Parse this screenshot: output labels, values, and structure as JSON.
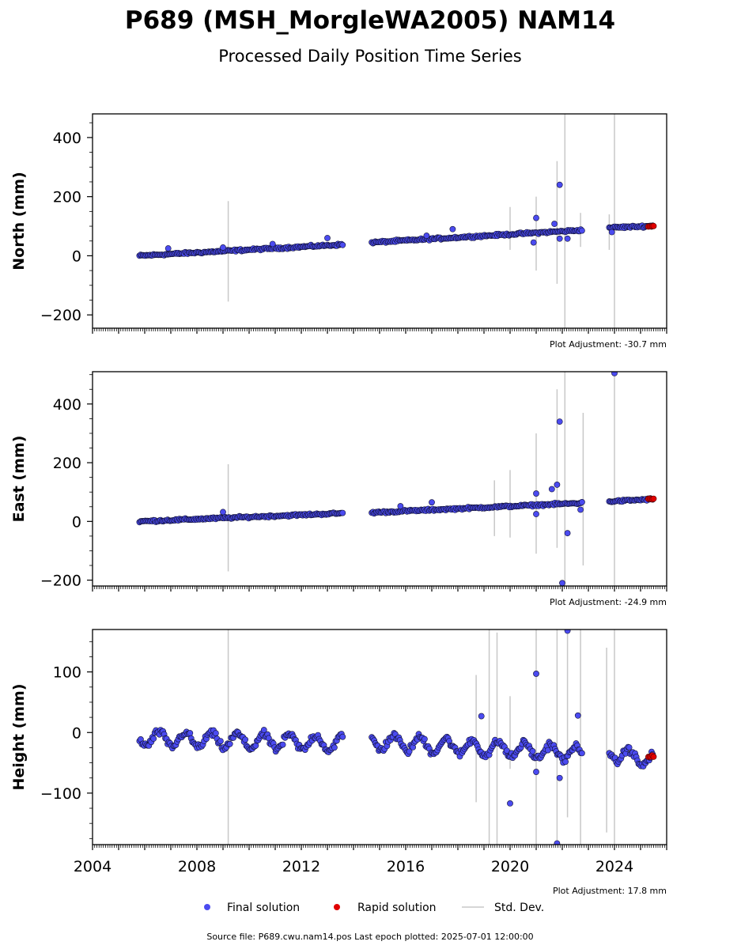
{
  "title": "P689 (MSH_MorgleWA2005) NAM14",
  "subtitle": "Processed Daily Position Time Series",
  "source_line": "Source file: P689.cwu.nam14.pos  Last epoch plotted: 2025-07-01 12:00:00",
  "legend": {
    "final": "Final solution",
    "rapid": "Rapid solution",
    "stddev": "Std. Dev."
  },
  "colors": {
    "final": "#4b4bf0",
    "rapid": "#e00000",
    "stddev": "#c8c8c8",
    "edge": "#111133"
  },
  "chart_data": [
    {
      "type": "scatter",
      "ylabel": "North (mm)",
      "adjustment": "Plot Adjustment: -30.7 mm",
      "xlim": [
        2004,
        2026
      ],
      "ylim": [
        -245,
        480
      ],
      "yticks": [
        -200,
        0,
        200,
        400
      ],
      "xticklabels": false,
      "trend": [
        {
          "from": 2005.8,
          "to": 2013.6,
          "y0": 0,
          "y1": 38
        },
        {
          "from": 2014.7,
          "to": 2022.8,
          "y0": 45,
          "y1": 87
        },
        {
          "from": 2023.8,
          "to": 2025.5,
          "y0": 95,
          "y1": 101
        }
      ],
      "noise": 3,
      "outliers": [
        {
          "x": 2006.9,
          "y": 25
        },
        {
          "x": 2009.0,
          "y": 28
        },
        {
          "x": 2010.9,
          "y": 40
        },
        {
          "x": 2013.0,
          "y": 60
        },
        {
          "x": 2016.8,
          "y": 68
        },
        {
          "x": 2017.8,
          "y": 90
        },
        {
          "x": 2020.9,
          "y": 45
        },
        {
          "x": 2021.0,
          "y": 128
        },
        {
          "x": 2021.7,
          "y": 108
        },
        {
          "x": 2021.9,
          "y": 240
        },
        {
          "x": 2021.9,
          "y": 58
        },
        {
          "x": 2022.2,
          "y": 58
        },
        {
          "x": 2023.9,
          "y": 80
        }
      ],
      "rapid": {
        "from": 2025.3,
        "to": 2025.5,
        "y": 100
      },
      "errorbars": [
        {
          "x": 2009.2,
          "lo": -155,
          "hi": 185
        },
        {
          "x": 2020.0,
          "lo": 20,
          "hi": 165
        },
        {
          "x": 2021.0,
          "lo": -50,
          "hi": 200
        },
        {
          "x": 2021.8,
          "lo": -95,
          "hi": 320
        },
        {
          "x": 2022.1,
          "lo": -245,
          "hi": 480
        },
        {
          "x": 2022.7,
          "lo": 30,
          "hi": 145
        },
        {
          "x": 2023.8,
          "lo": 20,
          "hi": 140
        },
        {
          "x": 2024.0,
          "lo": -245,
          "hi": 480
        }
      ]
    },
    {
      "type": "scatter",
      "ylabel": "East (mm)",
      "adjustment": "Plot Adjustment: -24.9 mm",
      "xlim": [
        2004,
        2026
      ],
      "ylim": [
        -220,
        510
      ],
      "yticks": [
        -200,
        0,
        200,
        400
      ],
      "xticklabels": false,
      "trend": [
        {
          "from": 2005.8,
          "to": 2013.6,
          "y0": 0,
          "y1": 28
        },
        {
          "from": 2014.7,
          "to": 2022.8,
          "y0": 30,
          "y1": 63
        },
        {
          "from": 2023.8,
          "to": 2025.5,
          "y0": 68,
          "y1": 76
        }
      ],
      "noise": 3,
      "outliers": [
        {
          "x": 2009.0,
          "y": 32
        },
        {
          "x": 2015.8,
          "y": 52
        },
        {
          "x": 2017.0,
          "y": 65
        },
        {
          "x": 2021.0,
          "y": 95
        },
        {
          "x": 2021.0,
          "y": 25
        },
        {
          "x": 2021.6,
          "y": 110
        },
        {
          "x": 2021.8,
          "y": 125
        },
        {
          "x": 2021.9,
          "y": 340
        },
        {
          "x": 2022.2,
          "y": -40
        },
        {
          "x": 2022.0,
          "y": -210
        },
        {
          "x": 2022.7,
          "y": 40
        },
        {
          "x": 2024.0,
          "y": 505
        }
      ],
      "rapid": {
        "from": 2025.3,
        "to": 2025.5,
        "y": 76
      },
      "errorbars": [
        {
          "x": 2009.2,
          "lo": -170,
          "hi": 195
        },
        {
          "x": 2019.4,
          "lo": -50,
          "hi": 140
        },
        {
          "x": 2020.0,
          "lo": -55,
          "hi": 175
        },
        {
          "x": 2021.0,
          "lo": -110,
          "hi": 300
        },
        {
          "x": 2021.8,
          "lo": -90,
          "hi": 450
        },
        {
          "x": 2022.1,
          "lo": -220,
          "hi": 510
        },
        {
          "x": 2022.8,
          "lo": -150,
          "hi": 370
        },
        {
          "x": 2024.0,
          "lo": -220,
          "hi": 510
        }
      ]
    },
    {
      "type": "scatter",
      "ylabel": "Height (mm)",
      "adjustment": "Plot Adjustment: 17.8 mm",
      "xlim": [
        2004,
        2026
      ],
      "ylim": [
        -185,
        170
      ],
      "yticks": [
        -100,
        0,
        100
      ],
      "xticks": [
        2004,
        2008,
        2012,
        2016,
        2020,
        2024
      ],
      "xticklabels": true,
      "trend": [
        {
          "from": 2005.8,
          "to": 2013.6,
          "y0": -10,
          "y1": -18
        },
        {
          "from": 2014.7,
          "to": 2022.8,
          "y0": -15,
          "y1": -35
        },
        {
          "from": 2023.8,
          "to": 2025.5,
          "y0": -35,
          "y1": -45
        }
      ],
      "seasonal_amplitude": 12,
      "noise": 5,
      "outliers": [
        {
          "x": 2018.9,
          "y": 27
        },
        {
          "x": 2020.0,
          "y": -117
        },
        {
          "x": 2021.0,
          "y": 97
        },
        {
          "x": 2021.0,
          "y": -65
        },
        {
          "x": 2021.9,
          "y": -75
        },
        {
          "x": 2022.2,
          "y": 168
        },
        {
          "x": 2021.8,
          "y": -183
        },
        {
          "x": 2022.6,
          "y": 28
        }
      ],
      "rapid": {
        "from": 2025.3,
        "to": 2025.5,
        "y": -40
      },
      "errorbars": [
        {
          "x": 2009.2,
          "lo": -185,
          "hi": 170
        },
        {
          "x": 2018.7,
          "lo": -115,
          "hi": 95
        },
        {
          "x": 2019.2,
          "lo": -185,
          "hi": 170
        },
        {
          "x": 2019.5,
          "lo": -185,
          "hi": 165
        },
        {
          "x": 2020.0,
          "lo": -60,
          "hi": 60
        },
        {
          "x": 2021.0,
          "lo": -185,
          "hi": 170
        },
        {
          "x": 2021.8,
          "lo": -185,
          "hi": 170
        },
        {
          "x": 2022.2,
          "lo": -140,
          "hi": 170
        },
        {
          "x": 2022.7,
          "lo": -185,
          "hi": 170
        },
        {
          "x": 2023.7,
          "lo": -165,
          "hi": 140
        },
        {
          "x": 2024.0,
          "lo": -185,
          "hi": 170
        }
      ]
    }
  ]
}
